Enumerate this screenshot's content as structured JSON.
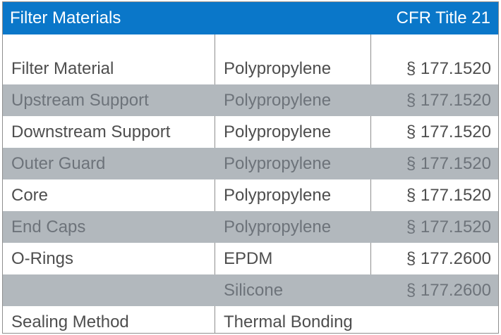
{
  "header": {
    "title": "Filter Materials",
    "reference": "CFR Title 21"
  },
  "rows": [
    {
      "component": "Filter Material",
      "material": "Polypropylene",
      "regulation": "§ 177.1520",
      "shaded": false
    },
    {
      "component": "Upstream Support",
      "material": "Polypropylene",
      "regulation": "§ 177.1520",
      "shaded": true
    },
    {
      "component": "Downstream Support",
      "material": "Polypropylene",
      "regulation": "§ 177.1520",
      "shaded": false
    },
    {
      "component": "Outer Guard",
      "material": "Polypropylene",
      "regulation": "§ 177.1520",
      "shaded": true
    },
    {
      "component": "Core",
      "material": "Polypropylene",
      "regulation": "§ 177.1520",
      "shaded": false
    },
    {
      "component": "End Caps",
      "material": "Polypropylene",
      "regulation": "§ 177.1520",
      "shaded": true
    },
    {
      "component": "O-Rings",
      "material": "EPDM",
      "regulation": "§ 177.2600",
      "shaded": false
    },
    {
      "component": "",
      "material": "Silicone",
      "regulation": "§ 177.2600",
      "shaded": true
    },
    {
      "component": "Sealing Method",
      "material": "Thermal Bonding",
      "regulation": "",
      "shaded": false
    }
  ],
  "colors": {
    "header": "#0a77c9",
    "shade": "#b2b8bd",
    "border": "#8f8f8f"
  }
}
